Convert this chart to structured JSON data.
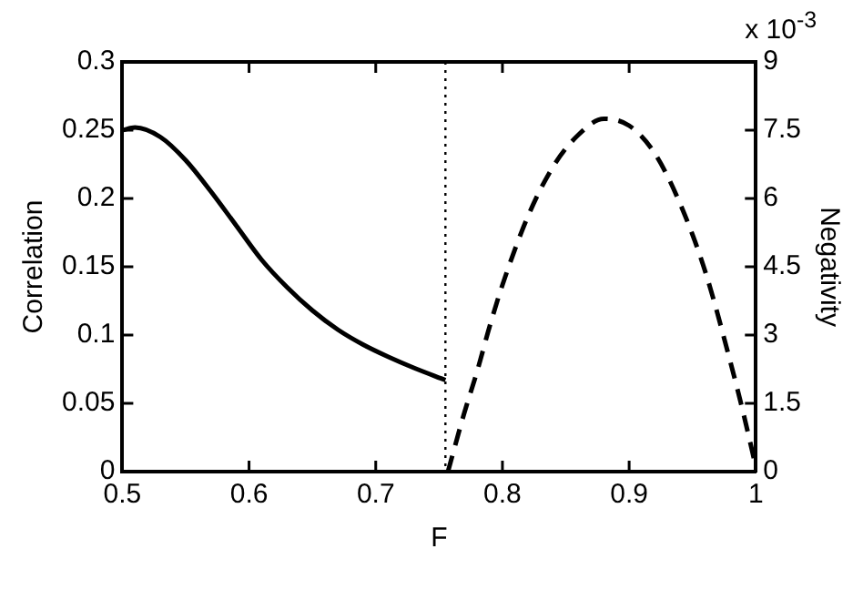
{
  "chart_data": {
    "type": "line",
    "xlabel": "F",
    "ylabel": "Correlation",
    "y2label": "Negativity",
    "annotations": [
      "x 10$^{-3}$"
    ],
    "xlim": [
      0.5,
      1
    ],
    "xticks": [
      0.5,
      0.6,
      0.7,
      0.8,
      0.9,
      1
    ],
    "ylim": [
      0,
      0.3
    ],
    "yticks": [
      0,
      0.05,
      0.1,
      0.15,
      0.2,
      0.25,
      0.3
    ],
    "y2lim": [
      0,
      9
    ],
    "y2ticks": [
      0,
      1.5,
      3,
      4.5,
      6,
      7.5,
      9
    ],
    "grid": false,
    "legend": false,
    "marker": "none",
    "ref_lines": [
      {
        "axis": "x",
        "value": 0.755,
        "color": "#000000",
        "line_style": "dotted"
      }
    ],
    "series": [
      {
        "color": "#000000",
        "line_style": "solid",
        "x": [
          0.5,
          0.51,
          0.53,
          0.55,
          0.57,
          0.59,
          0.61,
          0.63,
          0.65,
          0.67,
          0.69,
          0.71,
          0.73,
          0.755
        ],
        "values": [
          0.25,
          0.252,
          0.245,
          0.228,
          0.205,
          0.18,
          0.155,
          0.135,
          0.118,
          0.104,
          0.093,
          0.084,
          0.076,
          0.067
        ]
      },
      {
        "color": "#000000",
        "line_style": "dashed",
        "axis": "y2",
        "x": [
          0.757,
          0.77,
          0.78,
          0.79,
          0.8,
          0.82,
          0.84,
          0.86,
          0.88,
          0.9,
          0.92,
          0.94,
          0.96,
          0.98,
          0.99,
          1.0
        ],
        "values": [
          0,
          1.3,
          2.2,
          3.2,
          4.1,
          5.6,
          6.7,
          7.4,
          7.75,
          7.6,
          7.0,
          5.9,
          4.4,
          2.4,
          1.3,
          0.1
        ]
      }
    ]
  }
}
